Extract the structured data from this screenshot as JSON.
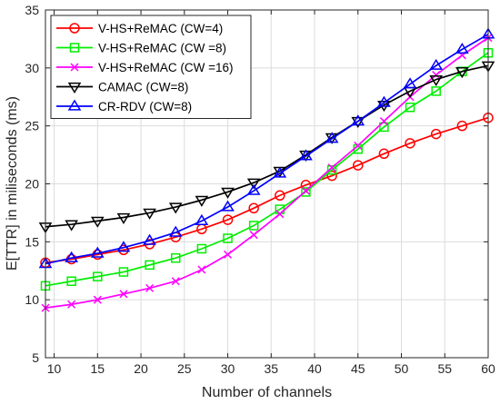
{
  "chart_data": {
    "type": "line",
    "title": "",
    "xlabel": "Number of channels",
    "ylabel": "E[TTR] in miliseconds (ms)",
    "xlim": [
      9,
      60
    ],
    "ylim": [
      5,
      35
    ],
    "xticks": [
      10,
      15,
      20,
      25,
      30,
      35,
      40,
      45,
      50,
      55,
      60
    ],
    "yticks": [
      5,
      10,
      15,
      20,
      25,
      30,
      35
    ],
    "grid": true,
    "legend_position": "top-left",
    "x": [
      9,
      12,
      15,
      18,
      21,
      24,
      27,
      30,
      33,
      36,
      39,
      42,
      45,
      48,
      51,
      54,
      57,
      60
    ],
    "series": [
      {
        "name": "V-HS+ReMAC (CW=4)",
        "color": "#ff0000",
        "marker": "circle",
        "values": [
          13.2,
          13.5,
          13.9,
          14.3,
          14.8,
          15.4,
          16.1,
          16.9,
          17.9,
          19.0,
          19.9,
          20.7,
          21.6,
          22.6,
          23.5,
          24.3,
          25.0,
          25.7
        ]
      },
      {
        "name": "V-HS+ReMAC (CW =8)",
        "color": "#00ee00",
        "marker": "square",
        "values": [
          11.2,
          11.6,
          12.0,
          12.4,
          13.0,
          13.6,
          14.4,
          15.3,
          16.4,
          17.8,
          19.3,
          21.2,
          23.0,
          24.9,
          26.6,
          28.0,
          29.7,
          31.3
        ]
      },
      {
        "name": "V-HS+ReMAC (CW =16)",
        "color": "#ff00ff",
        "marker": "x",
        "values": [
          9.3,
          9.6,
          10.0,
          10.5,
          11.0,
          11.6,
          12.6,
          13.9,
          15.6,
          17.4,
          19.4,
          21.4,
          23.3,
          25.4,
          27.5,
          29.4,
          31.1,
          32.6
        ]
      },
      {
        "name": "CAMAC (CW=8)",
        "color": "#000000",
        "marker": "triangle-down",
        "values": [
          16.3,
          16.5,
          16.8,
          17.1,
          17.5,
          18.0,
          18.6,
          19.3,
          20.1,
          21.1,
          22.5,
          24.0,
          25.4,
          26.8,
          28.0,
          29.0,
          29.7,
          30.2
        ]
      },
      {
        "name": "CR-RDV (CW=8)",
        "color": "#0000ff",
        "marker": "triangle-up",
        "values": [
          13.1,
          13.6,
          14.0,
          14.5,
          15.1,
          15.8,
          16.8,
          18.0,
          19.4,
          20.9,
          22.4,
          23.9,
          25.4,
          27.0,
          28.6,
          30.2,
          31.6,
          32.9
        ]
      }
    ]
  }
}
